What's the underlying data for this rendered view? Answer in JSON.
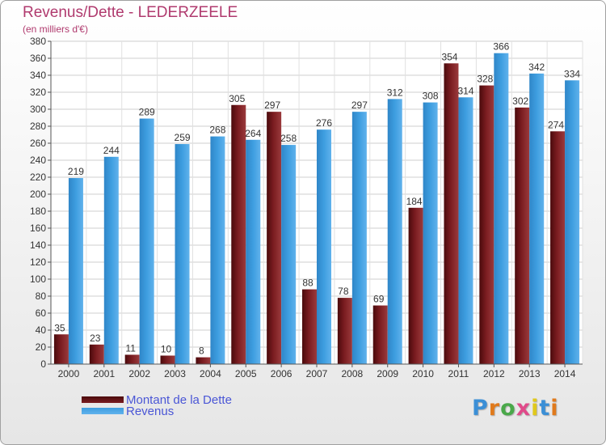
{
  "title": "Revenus/Dette - LEDERZEELE",
  "subtitle": "(en milliers d'€)",
  "logo_text": "Proxiti",
  "colors": {
    "dette": "#7a1c20",
    "revenus": "#3e9ee0",
    "title": "#b03a6e",
    "legend_text": "#4a56d6"
  },
  "legend": {
    "dette_label": "Montant de la Dette",
    "revenus_label": "Revenus"
  },
  "chart_data": {
    "type": "bar",
    "categories": [
      "2000",
      "2001",
      "2002",
      "2003",
      "2004",
      "2005",
      "2006",
      "2007",
      "2008",
      "2009",
      "2010",
      "2011",
      "2012",
      "2013",
      "2014"
    ],
    "series": [
      {
        "name": "Montant de la Dette",
        "values": [
          35,
          23,
          11,
          10,
          8,
          305,
          297,
          88,
          78,
          69,
          184,
          354,
          328,
          302,
          274
        ]
      },
      {
        "name": "Revenus",
        "values": [
          219,
          244,
          289,
          259,
          268,
          264,
          258,
          276,
          297,
          312,
          308,
          314,
          366,
          342,
          334
        ]
      }
    ],
    "ylim": [
      0,
      380
    ],
    "yticks": [
      0,
      20,
      40,
      60,
      80,
      100,
      120,
      140,
      160,
      180,
      200,
      220,
      240,
      260,
      280,
      300,
      320,
      340,
      360,
      380
    ],
    "grid": true,
    "legend_position": "bottom-left"
  }
}
